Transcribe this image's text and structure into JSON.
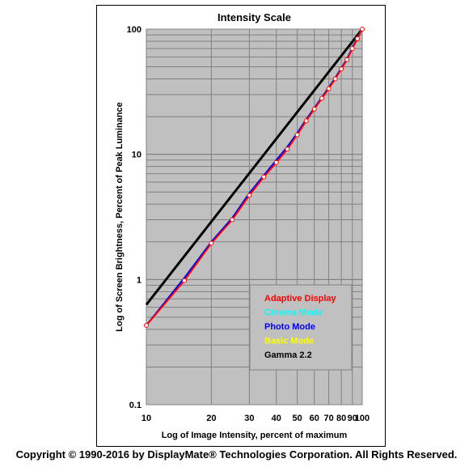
{
  "chart_data": {
    "type": "line",
    "title": "Intensity Scale",
    "xlabel": "Log of Image Intensity, percent of maximum",
    "ylabel": "Log of Screen Brightness, Percent of Peak Luminance",
    "xscale": "log",
    "yscale": "log",
    "xlim": [
      10,
      100
    ],
    "ylim": [
      0.1,
      100
    ],
    "grid": true,
    "legend_position": "bottom-right",
    "x_tick_labels": [
      "10",
      "20",
      "30",
      "40",
      "50",
      "60",
      "70",
      "80",
      "90",
      "100"
    ],
    "y_tick_labels": [
      "0.1",
      "1",
      "10",
      "100"
    ],
    "series": [
      {
        "name": "Adaptive Display",
        "color": "#ff0000",
        "x": [
          10,
          15,
          20,
          25,
          30,
          35,
          40,
          45,
          50,
          55,
          60,
          65,
          70,
          75,
          80,
          85,
          90,
          95,
          100
        ],
        "y": [
          0.43,
          0.98,
          1.95,
          3.0,
          4.7,
          6.6,
          8.6,
          11.0,
          14.3,
          18.5,
          23.0,
          28.0,
          33.5,
          40.0,
          48.0,
          57.0,
          70.0,
          84.0,
          100
        ]
      },
      {
        "name": "Cinema Mode",
        "color": "#00ffff",
        "x": [
          10,
          15,
          20,
          25,
          30,
          35,
          40,
          45,
          50,
          55,
          60,
          65,
          70,
          75,
          80,
          85,
          90,
          95,
          100
        ],
        "y": [
          0.43,
          1.0,
          1.97,
          3.05,
          4.8,
          6.7,
          8.8,
          11.3,
          14.6,
          18.8,
          23.3,
          28.3,
          34.0,
          40.5,
          48.5,
          57.5,
          70.5,
          84.5,
          100
        ]
      },
      {
        "name": "Photo Mode",
        "color": "#0000ff",
        "x": [
          10,
          15,
          20,
          25,
          30,
          35,
          40,
          45,
          50,
          55,
          60,
          65,
          70,
          75,
          80,
          85,
          90,
          95,
          100
        ],
        "y": [
          0.43,
          1.03,
          2.0,
          3.1,
          4.9,
          6.8,
          9.0,
          11.5,
          14.8,
          19.0,
          23.5,
          28.5,
          34.2,
          40.8,
          48.8,
          58.0,
          71.0,
          85.0,
          100
        ]
      },
      {
        "name": "Basic Mode",
        "color": "#ffff00",
        "x": [
          10,
          15,
          20,
          25,
          30,
          35,
          40,
          45,
          50,
          55,
          60,
          65,
          70,
          75,
          80,
          85,
          90,
          95,
          100
        ],
        "y": [
          0.43,
          1.0,
          1.96,
          3.02,
          4.75,
          6.65,
          8.7,
          11.1,
          14.4,
          18.6,
          23.1,
          28.1,
          33.7,
          40.2,
          48.2,
          57.2,
          70.2,
          84.2,
          100
        ]
      },
      {
        "name": "Gamma 2.2",
        "color": "#000000",
        "x": [
          10,
          100
        ],
        "y": [
          0.63,
          100
        ]
      }
    ]
  },
  "copyright": "Copyright © 1990-2016 by DisplayMate® Technologies Corporation. All Rights Reserved."
}
